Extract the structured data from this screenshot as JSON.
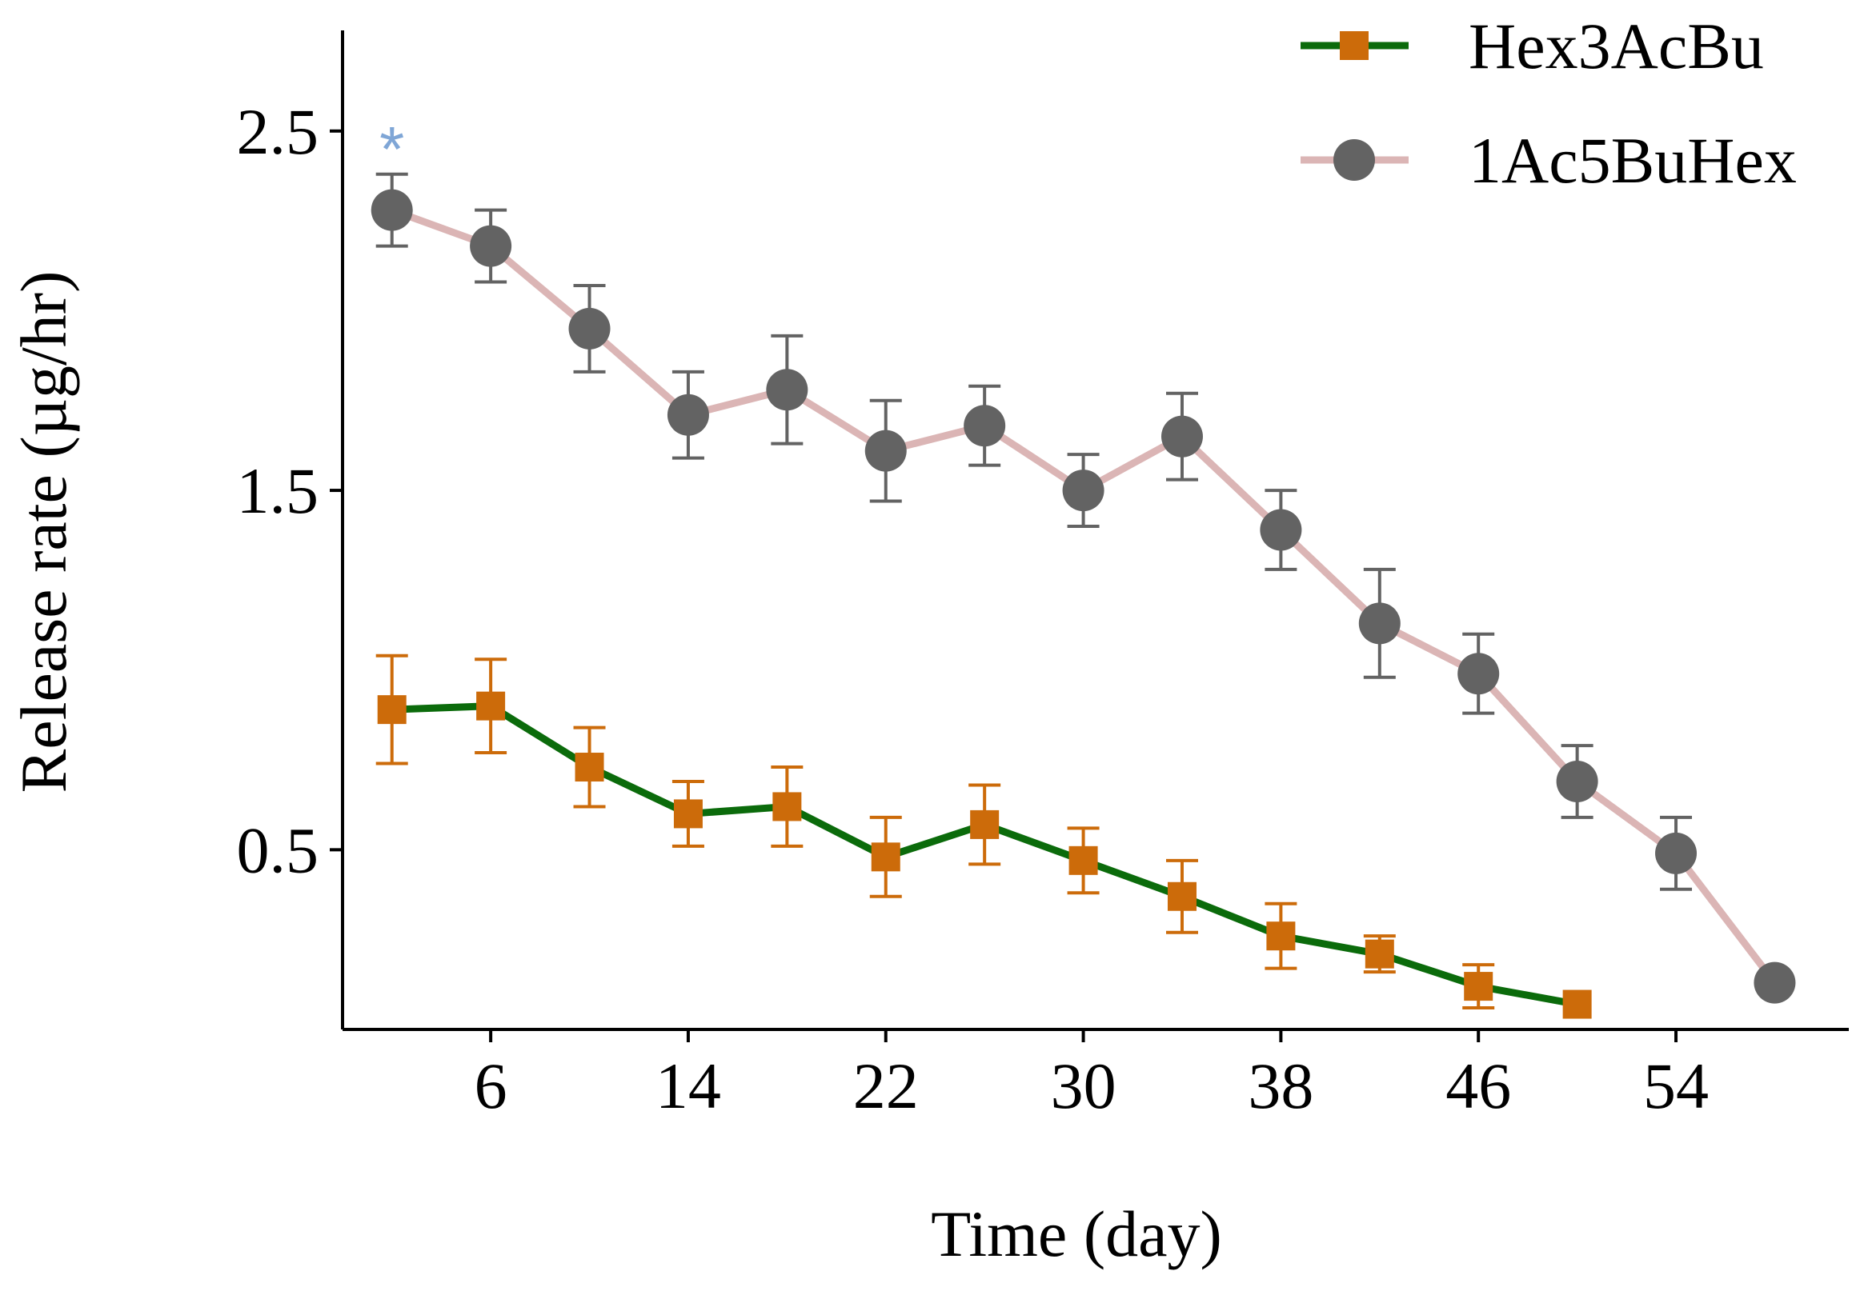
{
  "chart_data": {
    "type": "line",
    "xlabel": "Time (day)",
    "ylabel": "Release rate (µg/hr)",
    "xlim": [
      0,
      61
    ],
    "ylim": [
      0,
      2.78
    ],
    "xticks": [
      6,
      14,
      22,
      30,
      38,
      46,
      54
    ],
    "yticks": [
      0.5,
      1.5,
      2.5
    ],
    "ytick_labels": [
      "0.5",
      "1.5",
      "2.5"
    ],
    "grid": false,
    "legend_position": "top-right",
    "series": [
      {
        "name": "Hex3AcBu",
        "line_color": "#0b6b0b",
        "marker_color": "#cc6b0a",
        "marker": "square",
        "x": [
          2,
          6,
          10,
          14,
          18,
          22,
          26,
          30,
          34,
          38,
          42,
          46,
          50
        ],
        "y": [
          0.89,
          0.9,
          0.73,
          0.6,
          0.62,
          0.48,
          0.57,
          0.47,
          0.37,
          0.26,
          0.21,
          0.12,
          0.07
        ],
        "err": [
          0.15,
          0.13,
          0.11,
          0.09,
          0.11,
          0.11,
          0.11,
          0.09,
          0.1,
          0.09,
          0.05,
          0.06,
          0.0
        ]
      },
      {
        "name": "1Ac5BuHex",
        "line_color": "#dbb5b5",
        "marker_color": "#636363",
        "marker": "circle",
        "x": [
          2,
          6,
          10,
          14,
          18,
          22,
          26,
          30,
          34,
          38,
          42,
          46,
          50,
          54,
          58
        ],
        "y": [
          2.28,
          2.18,
          1.95,
          1.71,
          1.78,
          1.61,
          1.68,
          1.5,
          1.65,
          1.39,
          1.13,
          0.99,
          0.69,
          0.49,
          0.13
        ],
        "err": [
          0.1,
          0.1,
          0.12,
          0.12,
          0.15,
          0.14,
          0.11,
          0.1,
          0.12,
          0.11,
          0.15,
          0.11,
          0.1,
          0.1,
          0.0
        ]
      }
    ],
    "annotations": [
      {
        "text": "*",
        "x": 2,
        "y": 2.5,
        "color": "#7fa6d6"
      }
    ]
  }
}
